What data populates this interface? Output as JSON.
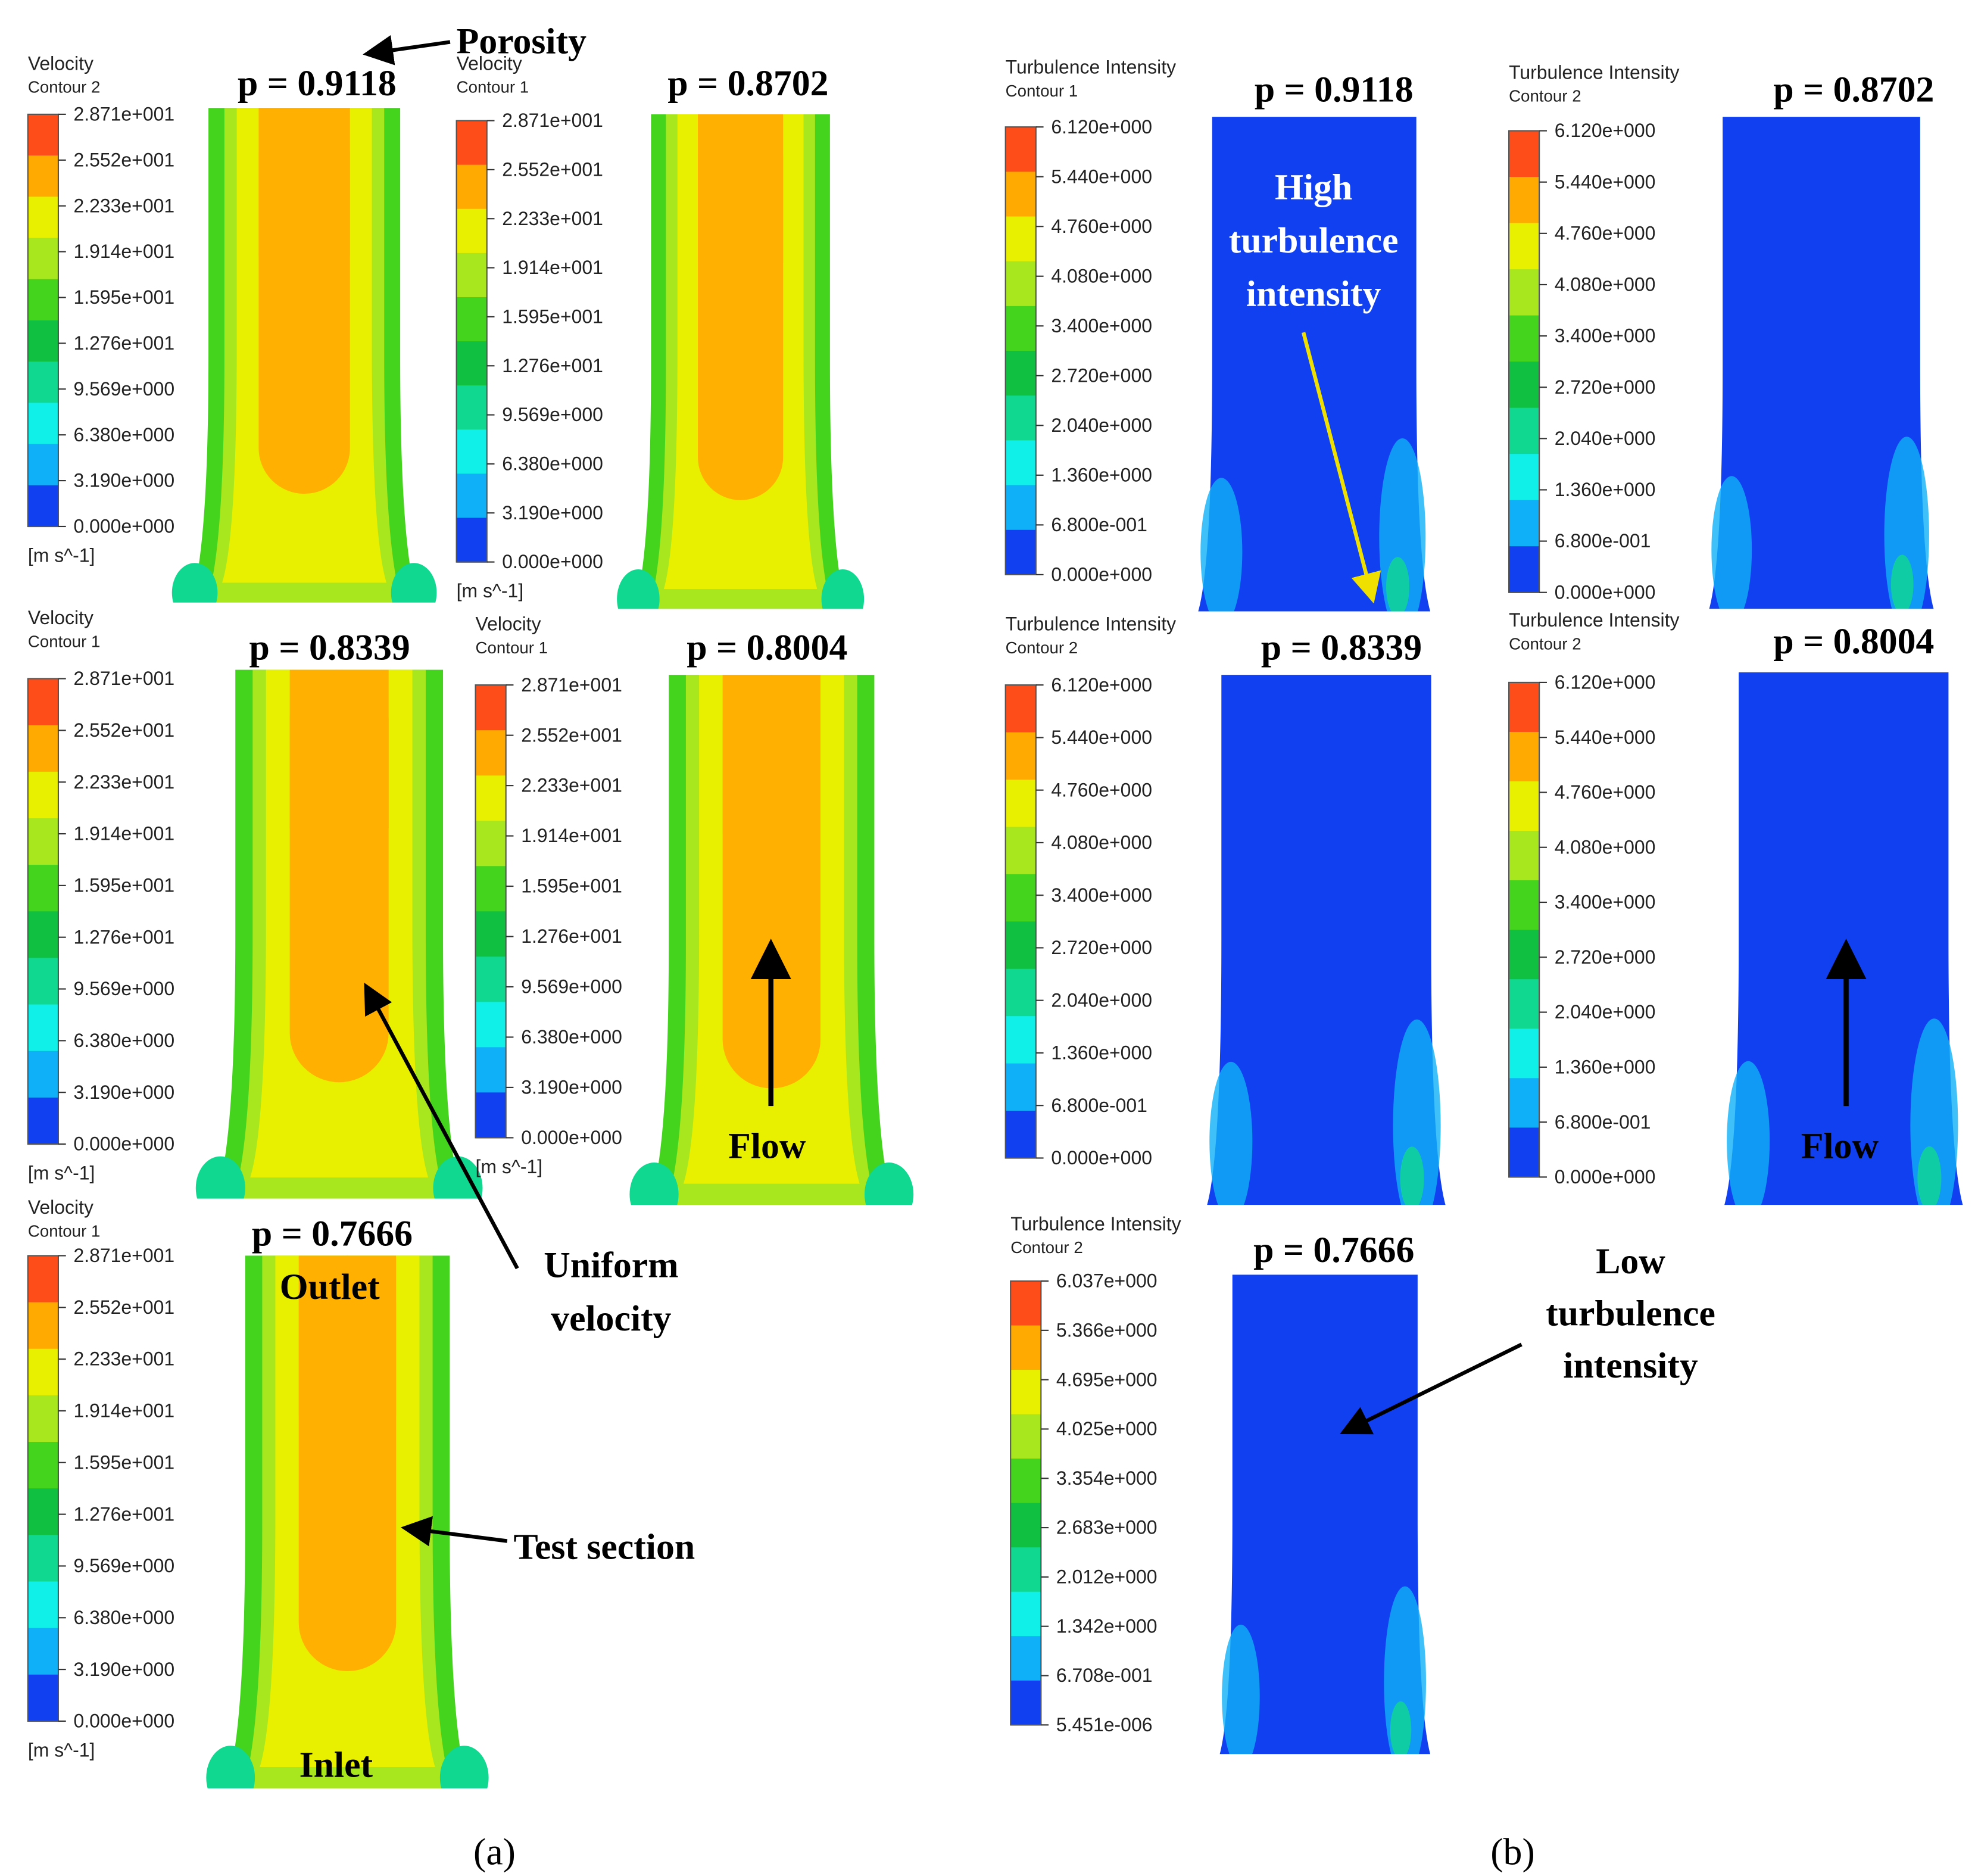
{
  "panel_a": {
    "caption": "(a)",
    "contours": [
      {
        "legend_title": "Velocity",
        "legend_subtitle": "Contour 2",
        "levels": [
          "2.871e+001",
          "2.552e+001",
          "2.233e+001",
          "1.914e+001",
          "1.595e+001",
          "1.276e+001",
          "9.569e+000",
          "6.380e+000",
          "3.190e+000",
          "0.000e+000"
        ],
        "unit": "[m s^-1]",
        "porosity": "p = 0.9118"
      },
      {
        "legend_title": "Velocity",
        "legend_subtitle": "Contour 1",
        "levels": [
          "2.871e+001",
          "2.552e+001",
          "2.233e+001",
          "1.914e+001",
          "1.595e+001",
          "1.276e+001",
          "9.569e+000",
          "6.380e+000",
          "3.190e+000",
          "0.000e+000"
        ],
        "unit": "[m s^-1]",
        "porosity": "p = 0.8702"
      },
      {
        "legend_title": "Velocity",
        "legend_subtitle": "Contour 1",
        "levels": [
          "2.871e+001",
          "2.552e+001",
          "2.233e+001",
          "1.914e+001",
          "1.595e+001",
          "1.276e+001",
          "9.569e+000",
          "6.380e+000",
          "3.190e+000",
          "0.000e+000"
        ],
        "unit": "[m s^-1]",
        "porosity": "p = 0.8339"
      },
      {
        "legend_title": "Velocity",
        "legend_subtitle": "Contour 1",
        "levels": [
          "2.871e+001",
          "2.552e+001",
          "2.233e+001",
          "1.914e+001",
          "1.595e+001",
          "1.276e+001",
          "9.569e+000",
          "6.380e+000",
          "3.190e+000",
          "0.000e+000"
        ],
        "unit": "[m s^-1]",
        "porosity": "p = 0.8004"
      },
      {
        "legend_title": "Velocity",
        "legend_subtitle": "Contour 1",
        "levels": [
          "2.871e+001",
          "2.552e+001",
          "2.233e+001",
          "1.914e+001",
          "1.595e+001",
          "1.276e+001",
          "9.569e+000",
          "6.380e+000",
          "3.190e+000",
          "0.000e+000"
        ],
        "unit": "[m s^-1]",
        "porosity": "p = 0.7666"
      }
    ]
  },
  "panel_b": {
    "caption": "(b)",
    "contours": [
      {
        "legend_title": "Turbulence Intensity",
        "legend_subtitle": "Contour 1",
        "levels": [
          "6.120e+000",
          "5.440e+000",
          "4.760e+000",
          "4.080e+000",
          "3.400e+000",
          "2.720e+000",
          "2.040e+000",
          "1.360e+000",
          "6.800e-001",
          "0.000e+000"
        ],
        "porosity": "p = 0.9118"
      },
      {
        "legend_title": "Turbulence Intensity",
        "legend_subtitle": "Contour 2",
        "levels": [
          "6.120e+000",
          "5.440e+000",
          "4.760e+000",
          "4.080e+000",
          "3.400e+000",
          "2.720e+000",
          "2.040e+000",
          "1.360e+000",
          "6.800e-001",
          "0.000e+000"
        ],
        "porosity": "p = 0.8702"
      },
      {
        "legend_title": "Turbulence Intensity",
        "legend_subtitle": "Contour 2",
        "levels": [
          "6.120e+000",
          "5.440e+000",
          "4.760e+000",
          "4.080e+000",
          "3.400e+000",
          "2.720e+000",
          "2.040e+000",
          "1.360e+000",
          "6.800e-001",
          "0.000e+000"
        ],
        "porosity": "p = 0.8339"
      },
      {
        "legend_title": "Turbulence Intensity",
        "legend_subtitle": "Contour 2",
        "levels": [
          "6.120e+000",
          "5.440e+000",
          "4.760e+000",
          "4.080e+000",
          "3.400e+000",
          "2.720e+000",
          "2.040e+000",
          "1.360e+000",
          "6.800e-001",
          "0.000e+000"
        ],
        "porosity": "p = 0.8004"
      },
      {
        "legend_title": "Turbulence Intensity",
        "legend_subtitle": "Contour 2",
        "levels": [
          "6.037e+000",
          "5.366e+000",
          "4.695e+000",
          "4.025e+000",
          "3.354e+000",
          "2.683e+000",
          "2.012e+000",
          "1.342e+000",
          "6.708e-001",
          "5.451e-006"
        ],
        "porosity": "p = 0.7666"
      }
    ]
  },
  "annotations": {
    "porosity": "Porosity",
    "uniform_velocity": [
      "Uniform",
      "velocity"
    ],
    "test_section": "Test section",
    "outlet": "Outlet",
    "inlet": "Inlet",
    "flow_a": "Flow",
    "flow_b": "Flow",
    "high_turbulence": [
      "High",
      "turbulence",
      "intensity"
    ],
    "low_turbulence": [
      "Low",
      "turbulence",
      "intensity"
    ]
  }
}
